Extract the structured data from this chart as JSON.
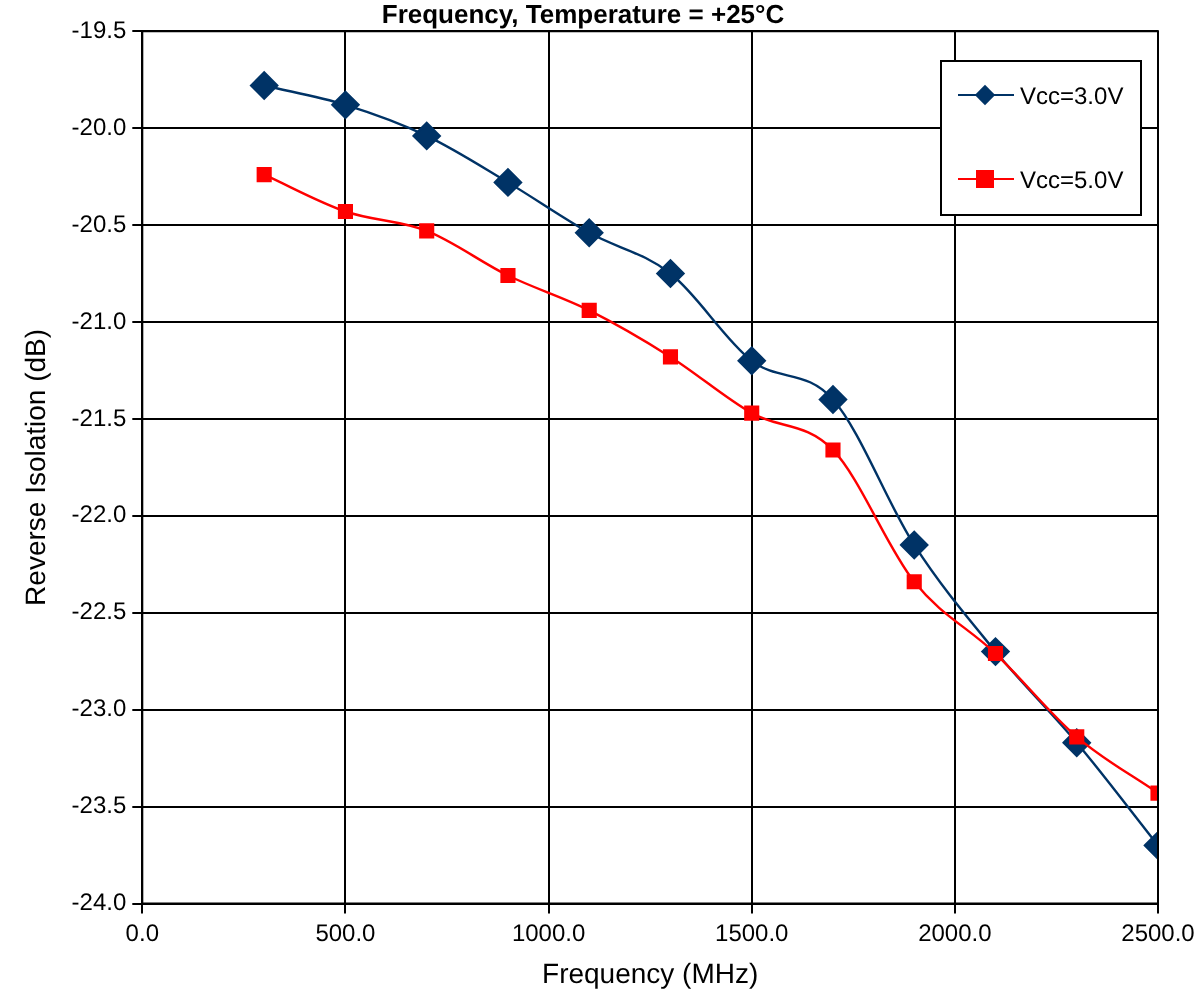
{
  "chart_data": {
    "type": "line",
    "title": "Frequency, Temperature = +25°C",
    "xlabel": "Frequency (MHz)",
    "ylabel": "Reverse Isolation (dB)",
    "x": [
      300,
      500,
      700,
      900,
      1100,
      1300,
      1500,
      1700,
      1900,
      2100,
      2300,
      2500
    ],
    "series": [
      {
        "name": "Vcc=3.0V",
        "color": "#003366",
        "marker": "diamond",
        "values": [
          -19.78,
          -19.88,
          -20.04,
          -20.28,
          -20.54,
          -20.75,
          -21.2,
          -21.4,
          -22.15,
          -22.7,
          -23.17,
          -23.7
        ]
      },
      {
        "name": "Vcc=5.0V",
        "color": "#ff0000",
        "marker": "square",
        "values": [
          -20.24,
          -20.43,
          -20.53,
          -20.76,
          -20.94,
          -21.18,
          -21.47,
          -21.66,
          -22.34,
          -22.71,
          -23.14,
          -23.43
        ]
      }
    ],
    "xlim": [
      0,
      2500
    ],
    "xticks": [
      {
        "value": 0,
        "label": "0.0"
      },
      {
        "value": 500,
        "label": "500.0"
      },
      {
        "value": 1000,
        "label": "1000.0"
      },
      {
        "value": 1500,
        "label": "1500.0"
      },
      {
        "value": 2000,
        "label": "2000.0"
      },
      {
        "value": 2500,
        "label": "2500.0"
      }
    ],
    "ylim": [
      -24,
      -19.5
    ],
    "yticks": [
      {
        "value": -24,
        "label": "-24.0"
      },
      {
        "value": -23.5,
        "label": "-23.5"
      },
      {
        "value": -23,
        "label": "-23.0"
      },
      -22.5,
      {
        "value": -22,
        "label": "-22.0"
      },
      -21.5,
      {
        "value": -21,
        "label": "-21.0"
      },
      -20.5,
      {
        "value": -20,
        "label": "-20.0"
      },
      -19.5
    ],
    "grid": true,
    "legend": "top right",
    "line_style": "solid"
  }
}
